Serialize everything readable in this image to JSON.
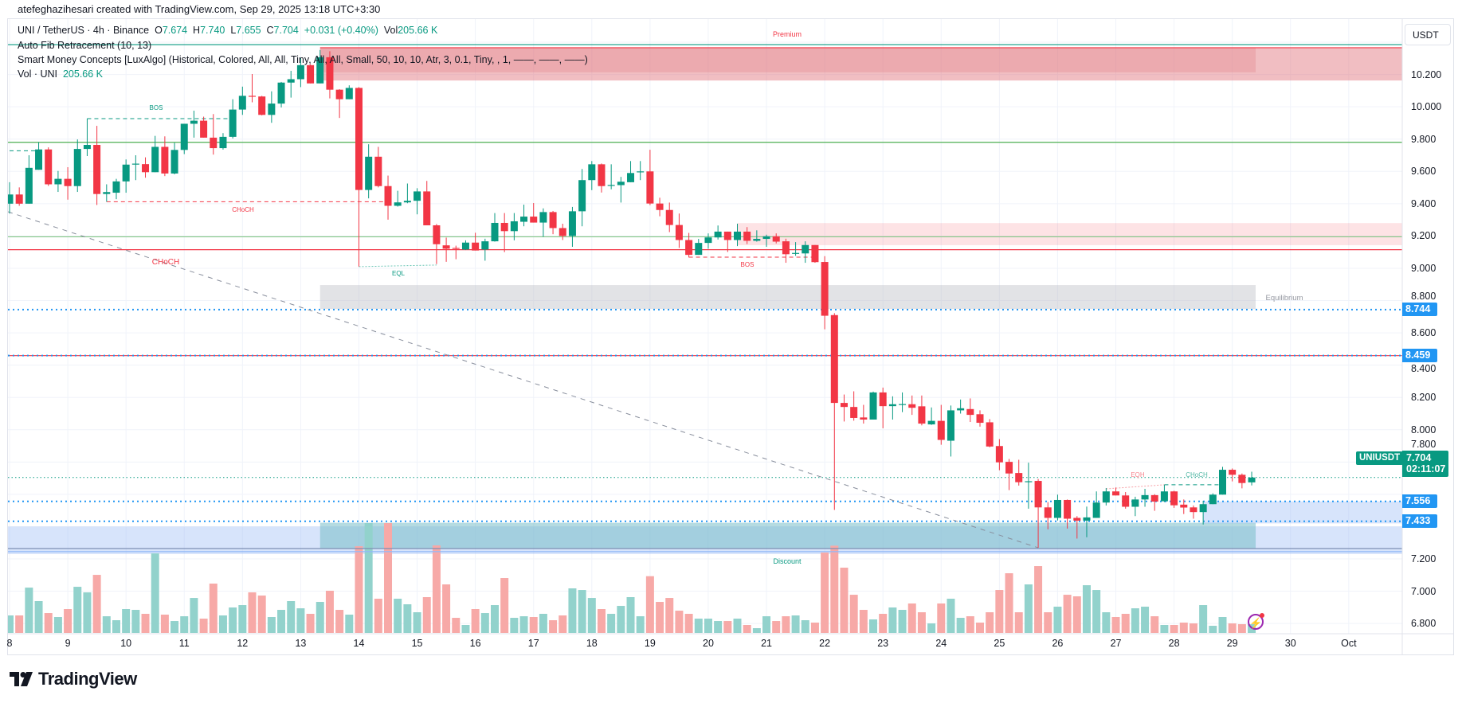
{
  "credit": "atefeghazihesari created with TradingView.com, Sep 29, 2025 13:18 UTC+3:30",
  "legend": {
    "symbol": "UNI / TetherUS · 4h · Binance",
    "o_label": "O",
    "o": "7.674",
    "h_label": "H",
    "h": "7.740",
    "l_label": "L",
    "l": "7.655",
    "c_label": "C",
    "c": "7.704",
    "change": "+0.031 (+0.40%)",
    "vol_label": "Vol",
    "vol": "205.66 K",
    "fib": "Auto Fib Retracement (10, 13)",
    "smc": "Smart Money Concepts [LuxAlgo] (Historical, Colored, All, All, Tiny, All, All, Small, 50, 10, 10, Atr, 3, 0.1, Tiny, , 1, ——, ——, ——)",
    "vol_study": "Vol · UNI",
    "vol_study_value": "205.66 K"
  },
  "currency_button": "USDT",
  "zone_labels": {
    "premium": "Premium",
    "equilibrium": "Equilibrium",
    "discount": "Discount"
  },
  "structure_labels": {
    "bos_1": "BOS",
    "choch_1": "CHoCH",
    "choch_2": "CHoCH",
    "eql": "EQL",
    "bos_2": "BOS",
    "eqh": "EQH",
    "choch_3": "CHoCH"
  },
  "price_tags": [
    {
      "value": "8.744",
      "price": 8.744
    },
    {
      "value": "8.459",
      "price": 8.459
    },
    {
      "value": "7.556",
      "price": 7.556
    },
    {
      "value": "7.433",
      "price": 7.433
    }
  ],
  "last_price": {
    "symbol": "UNIUSDT",
    "value": "7.704",
    "countdown": "02:11:07",
    "price": 7.704
  },
  "logo_text": "TradingView",
  "colors": {
    "up": "#089981",
    "down": "#f23645",
    "vol_up": "#92d2cc",
    "vol_down": "#f7a9a7",
    "grid": "#f0f3fa",
    "accent_blue": "#2196f3"
  },
  "chart_data": {
    "type": "candlestick",
    "interval": "4h",
    "start": "Sep 8 00:00",
    "y_ticks": [
      "10.200",
      "10.000",
      "9.800",
      "9.600",
      "9.400",
      "9.200",
      "9.000",
      "8.800",
      "8.600",
      "8.400",
      "8.200",
      "8.000",
      "7.800",
      "7.200",
      "7.000",
      "6.800"
    ],
    "x_ticks": [
      {
        "label": "8",
        "day": 8
      },
      {
        "label": "9",
        "day": 9
      },
      {
        "label": "10",
        "day": 10
      },
      {
        "label": "11",
        "day": 11
      },
      {
        "label": "12",
        "day": 12
      },
      {
        "label": "13",
        "day": 13
      },
      {
        "label": "14",
        "day": 14
      },
      {
        "label": "15",
        "day": 15
      },
      {
        "label": "16",
        "day": 16
      },
      {
        "label": "17",
        "day": 17
      },
      {
        "label": "18",
        "day": 18
      },
      {
        "label": "19",
        "day": 19
      },
      {
        "label": "20",
        "day": 20
      },
      {
        "label": "21",
        "day": 21
      },
      {
        "label": "22",
        "day": 22
      },
      {
        "label": "23",
        "day": 23
      },
      {
        "label": "24",
        "day": 24
      },
      {
        "label": "25",
        "day": 25
      },
      {
        "label": "26",
        "day": 26
      },
      {
        "label": "27",
        "day": 27
      },
      {
        "label": "28",
        "day": 28
      },
      {
        "label": "29",
        "day": 29
      },
      {
        "label": "30",
        "day": 30
      },
      {
        "label": "Oct",
        "day": 31
      }
    ],
    "ohlc": [
      [
        9.4,
        9.533,
        9.339,
        9.457
      ],
      [
        9.457,
        9.501,
        9.387,
        9.4
      ],
      [
        9.4,
        9.7,
        9.4,
        9.622
      ],
      [
        9.61,
        9.78,
        9.61,
        9.736
      ],
      [
        9.736,
        9.749,
        9.51,
        9.52
      ],
      [
        9.52,
        9.603,
        9.473,
        9.554
      ],
      [
        9.554,
        9.626,
        9.425,
        9.509
      ],
      [
        9.509,
        9.798,
        9.473,
        9.739
      ],
      [
        9.739,
        9.927,
        9.695,
        9.764
      ],
      [
        9.764,
        9.882,
        9.392,
        9.46
      ],
      [
        9.46,
        9.52,
        9.412,
        9.472
      ],
      [
        9.468,
        9.554,
        9.428,
        9.538
      ],
      [
        9.538,
        9.674,
        9.468,
        9.642
      ],
      [
        9.645,
        9.7,
        9.546,
        9.648
      ],
      [
        9.645,
        9.687,
        9.561,
        9.595
      ],
      [
        9.595,
        9.82,
        9.595,
        9.752
      ],
      [
        9.752,
        9.817,
        9.571,
        9.587
      ],
      [
        9.587,
        9.777,
        9.582,
        9.733
      ],
      [
        9.733,
        9.895,
        9.707,
        9.895
      ],
      [
        9.895,
        9.976,
        9.809,
        9.914
      ],
      [
        9.914,
        9.939,
        9.809,
        9.809
      ],
      [
        9.809,
        9.955,
        9.704,
        9.744
      ],
      [
        9.744,
        9.837,
        9.735,
        9.814
      ],
      [
        9.814,
        10.047,
        9.804,
        9.983
      ],
      [
        9.983,
        10.125,
        9.95,
        10.068
      ],
      [
        10.068,
        10.203,
        10.028,
        10.064
      ],
      [
        10.064,
        10.068,
        9.947,
        9.95
      ],
      [
        9.95,
        10.096,
        9.901,
        10.02
      ],
      [
        10.02,
        10.154,
        9.996,
        10.15
      ],
      [
        10.15,
        10.223,
        10.057,
        10.171
      ],
      [
        10.171,
        10.304,
        10.122,
        10.258
      ],
      [
        10.258,
        10.263,
        10.145,
        10.145
      ],
      [
        10.145,
        10.352,
        10.145,
        10.307
      ],
      [
        10.307,
        10.344,
        10.052,
        10.106
      ],
      [
        10.106,
        10.109,
        9.931,
        10.047
      ],
      [
        10.047,
        10.133,
        10.047,
        10.117
      ],
      [
        10.117,
        10.122,
        9.01,
        9.485
      ],
      [
        9.485,
        9.768,
        9.433,
        9.691
      ],
      [
        9.691,
        9.752,
        9.501,
        9.509
      ],
      [
        9.509,
        9.574,
        9.301,
        9.387
      ],
      [
        9.387,
        9.48,
        9.382,
        9.408
      ],
      [
        9.408,
        9.525,
        9.403,
        9.418
      ],
      [
        9.418,
        9.496,
        9.334,
        9.476
      ],
      [
        9.476,
        9.541,
        9.266,
        9.266
      ],
      [
        9.266,
        9.274,
        9.026,
        9.149
      ],
      [
        9.142,
        9.19,
        9.04,
        9.121
      ],
      [
        9.126,
        9.14,
        9.056,
        9.121
      ],
      [
        9.116,
        9.173,
        9.113,
        9.159
      ],
      [
        9.159,
        9.22,
        9.11,
        9.11
      ],
      [
        9.116,
        9.183,
        9.047,
        9.167
      ],
      [
        9.167,
        9.342,
        9.165,
        9.281
      ],
      [
        9.281,
        9.342,
        9.1,
        9.23
      ],
      [
        9.23,
        9.342,
        9.173,
        9.291
      ],
      [
        9.288,
        9.394,
        9.26,
        9.32
      ],
      [
        9.32,
        9.404,
        9.283,
        9.283
      ],
      [
        9.283,
        9.371,
        9.195,
        9.348
      ],
      [
        9.348,
        9.355,
        9.211,
        9.249
      ],
      [
        9.249,
        9.276,
        9.175,
        9.2
      ],
      [
        9.2,
        9.38,
        9.133,
        9.353
      ],
      [
        9.353,
        9.615,
        9.26,
        9.546
      ],
      [
        9.546,
        9.664,
        9.484,
        9.644
      ],
      [
        9.644,
        9.649,
        9.469,
        9.509
      ],
      [
        9.515,
        9.644,
        9.489,
        9.516
      ],
      [
        9.515,
        9.566,
        9.407,
        9.536
      ],
      [
        9.533,
        9.664,
        9.533,
        9.59
      ],
      [
        9.597,
        9.664,
        9.546,
        9.6
      ],
      [
        9.6,
        9.734,
        9.391,
        9.401
      ],
      [
        9.401,
        9.437,
        9.322,
        9.361
      ],
      [
        9.361,
        9.407,
        9.224,
        9.268
      ],
      [
        9.268,
        9.339,
        9.126,
        9.175
      ],
      [
        9.175,
        9.219,
        9.067,
        9.083
      ],
      [
        9.083,
        9.182,
        9.083,
        9.157
      ],
      [
        9.157,
        9.216,
        9.121,
        9.191
      ],
      [
        9.191,
        9.265,
        9.178,
        9.227
      ],
      [
        9.227,
        9.227,
        9.101,
        9.175
      ],
      [
        9.175,
        9.276,
        9.137,
        9.227
      ],
      [
        9.227,
        9.255,
        9.15,
        9.17
      ],
      [
        9.17,
        9.235,
        9.165,
        9.182
      ],
      [
        9.182,
        9.208,
        9.133,
        9.198
      ],
      [
        9.198,
        9.216,
        9.154,
        9.165
      ],
      [
        9.167,
        9.183,
        9.034,
        9.087
      ],
      [
        9.093,
        9.162,
        9.077,
        9.095
      ],
      [
        9.092,
        9.167,
        9.034,
        9.144
      ],
      [
        9.144,
        9.144,
        9.034,
        9.038
      ],
      [
        9.039,
        9.075,
        8.622,
        8.706
      ],
      [
        8.71,
        8.722,
        7.503,
        8.166
      ],
      [
        8.166,
        8.218,
        8.051,
        8.141
      ],
      [
        8.141,
        8.238,
        8.056,
        8.073
      ],
      [
        8.076,
        8.154,
        8.038,
        8.063
      ],
      [
        8.063,
        8.236,
        8.063,
        8.231
      ],
      [
        8.231,
        8.261,
        8.009,
        8.146
      ],
      [
        8.146,
        8.207,
        8.063,
        8.158
      ],
      [
        8.158,
        8.231,
        8.109,
        8.159
      ],
      [
        8.158,
        8.212,
        8.092,
        8.136
      ],
      [
        8.145,
        8.212,
        8.027,
        8.038
      ],
      [
        8.033,
        8.138,
        8.03,
        8.055
      ],
      [
        8.055,
        8.154,
        7.907,
        7.937
      ],
      [
        7.932,
        8.15,
        7.834,
        8.12
      ],
      [
        8.12,
        8.187,
        8.1,
        8.133
      ],
      [
        8.128,
        8.194,
        8.048,
        8.092
      ],
      [
        8.096,
        8.12,
        8.019,
        8.043
      ],
      [
        8.046,
        8.066,
        7.891,
        7.896
      ],
      [
        7.899,
        7.942,
        7.749,
        7.798
      ],
      [
        7.801,
        7.819,
        7.626,
        7.729
      ],
      [
        7.732,
        7.814,
        7.654,
        7.675
      ],
      [
        7.68,
        7.796,
        7.511,
        7.681
      ],
      [
        7.683,
        7.695,
        7.269,
        7.519
      ],
      [
        7.519,
        7.552,
        7.383,
        7.454
      ],
      [
        7.454,
        7.598,
        7.438,
        7.565
      ],
      [
        7.565,
        7.568,
        7.388,
        7.449
      ],
      [
        7.454,
        7.465,
        7.326,
        7.437
      ],
      [
        7.437,
        7.524,
        7.334,
        7.457
      ],
      [
        7.454,
        7.618,
        7.454,
        7.549
      ],
      [
        7.549,
        7.639,
        7.531,
        7.618
      ],
      [
        7.618,
        7.642,
        7.593,
        7.593
      ],
      [
        7.593,
        7.614,
        7.511,
        7.523
      ],
      [
        7.523,
        7.585,
        7.465,
        7.568
      ],
      [
        7.568,
        7.634,
        7.523,
        7.595
      ],
      [
        7.595,
        7.601,
        7.498,
        7.555
      ],
      [
        7.557,
        7.659,
        7.552,
        7.618
      ],
      [
        7.618,
        7.622,
        7.516,
        7.532
      ],
      [
        7.536,
        7.568,
        7.478,
        7.518
      ],
      [
        7.519,
        7.531,
        7.449,
        7.49
      ],
      [
        7.49,
        7.56,
        7.413,
        7.539
      ],
      [
        7.539,
        7.606,
        7.539,
        7.598
      ],
      [
        7.598,
        7.77,
        7.598,
        7.752
      ],
      [
        7.752,
        7.76,
        7.68,
        7.721
      ],
      [
        7.721,
        7.729,
        7.637,
        7.67
      ],
      [
        7.674,
        7.74,
        7.655,
        7.704
      ]
    ],
    "volume_k": [
      411,
      411,
      1065,
      748,
      467,
      374,
      561,
      1084,
      953,
      1364,
      392,
      299,
      561,
      542,
      449,
      1869,
      430,
      280,
      392,
      822,
      336,
      1159,
      411,
      598,
      654,
      953,
      878,
      374,
      542,
      748,
      579,
      449,
      729,
      991,
      542,
      430,
      2037,
      2580,
      804,
      2580,
      804,
      673,
      486,
      841,
      2056,
      1140,
      355,
      187,
      561,
      467,
      654,
      1290,
      355,
      392,
      374,
      449,
      299,
      411,
      1047,
      1009,
      822,
      561,
      449,
      635,
      841,
      392,
      1333,
      729,
      822,
      523,
      449,
      336,
      336,
      280,
      280,
      336,
      187,
      112,
      392,
      280,
      392,
      411,
      299,
      243,
      1888,
      2050,
      1533,
      897,
      542,
      318,
      449,
      598,
      542,
      692,
      486,
      224,
      692,
      804,
      355,
      392,
      243,
      486,
      1009,
      1402,
      486,
      1140,
      1570,
      486,
      617,
      897,
      860,
      1121,
      1009,
      486,
      374,
      449,
      579,
      617,
      392,
      187,
      187,
      243,
      224,
      654,
      168,
      374,
      224,
      206,
      205.66
    ],
    "levels": [
      {
        "name": "fib-top-line",
        "price": 10.385,
        "color": "#089981",
        "style": "solid"
      },
      {
        "name": "premium-top-line",
        "price": 10.366,
        "color": "#f23645",
        "style": "solid",
        "from": 33
      },
      {
        "name": "fib-green-line-upper",
        "price": 9.78,
        "color": "#4caf50",
        "style": "solid"
      },
      {
        "name": "fib-green-line-lower",
        "price": 9.195,
        "color": "#81c784",
        "style": "solid"
      },
      {
        "name": "choch-red-line",
        "price": 9.115,
        "color": "#f23645",
        "style": "solid"
      },
      {
        "name": "red-level-line",
        "price": 8.459,
        "color": "#f23645",
        "style": "solid"
      },
      {
        "name": "blue-dotted-level",
        "price": 8.744,
        "color": "#2196f3",
        "style": "dotted"
      },
      {
        "name": "blue-dotted-level",
        "price": 8.459,
        "color": "#2196f3",
        "style": "dotted"
      },
      {
        "name": "blue-dotted-level",
        "price": 7.556,
        "color": "#2196f3",
        "style": "dotted"
      },
      {
        "name": "blue-dotted-level",
        "price": 7.433,
        "color": "#2196f3",
        "style": "dotted"
      },
      {
        "name": "last-price-line",
        "price": 7.704,
        "color": "#089981",
        "style": "dotted"
      },
      {
        "name": "discount-bottom-line",
        "price": 7.264,
        "color": "#7e8fb3",
        "style": "solid"
      },
      {
        "name": "discount-blue-line",
        "price": 7.245,
        "color": "#90b8f8",
        "style": "solid"
      }
    ],
    "zones": [
      {
        "name": "premium-zone-extended",
        "top": 10.366,
        "bottom": 10.163,
        "from": 33,
        "to": "edge",
        "color": "rgba(224,110,120,0.45)"
      },
      {
        "name": "premium-zone",
        "top": 10.366,
        "bottom": 10.214,
        "from": 33,
        "to": 129,
        "color": "rgba(224,110,120,0.25)"
      },
      {
        "name": "supply-zone",
        "top": 9.28,
        "bottom": 9.143,
        "from": 76,
        "to": "edge",
        "color": "rgba(242,54,69,0.14)"
      },
      {
        "name": "equilibrium-zone",
        "top": 8.896,
        "bottom": 8.748,
        "from": 33,
        "to": 129,
        "color": "rgba(180,182,190,0.38)"
      },
      {
        "name": "discount-zone-extended",
        "top": 7.4,
        "bottom": 7.23,
        "from": 0,
        "to": "edge",
        "color": "rgba(150,185,245,0.38)"
      },
      {
        "name": "discount-zone",
        "top": 7.424,
        "bottom": 7.264,
        "from": 33,
        "to": 129,
        "color": "rgba(120,190,200,0.55)"
      },
      {
        "name": "demand-zone",
        "top": 7.556,
        "bottom": 7.42,
        "from": 124,
        "to": "edge",
        "color": "rgba(150,185,245,0.38)"
      }
    ],
    "structure_lines": [
      {
        "name": "bos-line-teal",
        "from": 9,
        "to": 24,
        "p1": 9.927,
        "p2": 9.927,
        "color": "#089981",
        "dash": "5,4"
      },
      {
        "name": "eqh-line-teal-start",
        "from": 1,
        "to": 4,
        "p1": 9.728,
        "p2": 9.728,
        "color": "#089981",
        "dash": "5,4"
      },
      {
        "name": "choch-line-red",
        "from": 11,
        "to": 39.5,
        "p1": 9.412,
        "p2": 9.412,
        "color": "#f23645",
        "dash": "5,4"
      },
      {
        "name": "eql-line",
        "from": 37,
        "to": 45,
        "p1": 9.01,
        "p2": 9.02,
        "color": "#6cc6b6",
        "dash": "2,2"
      },
      {
        "name": "bos-line-red",
        "from": 71,
        "to": 84,
        "p1": 9.069,
        "p2": 9.069,
        "color": "#f23645",
        "dash": "5,4"
      },
      {
        "name": "eqh-line",
        "from": 114,
        "to": 120,
        "p1": 7.634,
        "p2": 7.659,
        "color": "#f7a0a6",
        "dash": "2,2"
      },
      {
        "name": "choch-line-teal",
        "from": 120,
        "to": 126,
        "p1": 7.659,
        "p2": 7.659,
        "color": "#089981",
        "dash": "5,4"
      },
      {
        "name": "trendline-dashed",
        "from": 0.75,
        "to": 107,
        "p1": 9.35,
        "p2": 7.269,
        "color": "#888e9c",
        "dash": "6,6"
      }
    ]
  }
}
